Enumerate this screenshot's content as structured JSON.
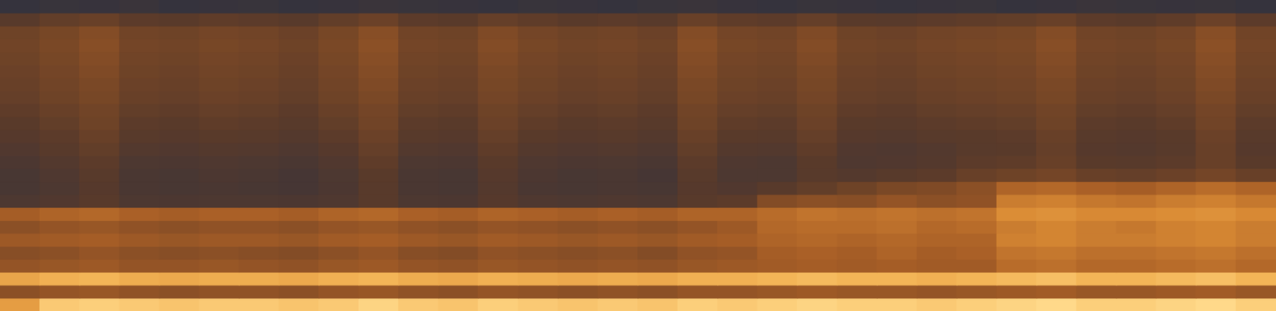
{
  "chart_data": {
    "type": "heatmap",
    "grid": false,
    "tick_labels": false,
    "cells": [
      [
        22,
        24,
        23,
        25,
        22,
        23,
        24,
        22,
        23,
        25,
        24,
        23,
        22,
        24,
        23,
        22,
        24,
        25,
        23,
        22,
        24,
        23,
        22,
        23,
        24,
        22,
        23,
        25,
        24,
        23,
        24,
        22
      ],
      [
        42,
        46,
        48,
        44,
        43,
        45,
        44,
        42,
        46,
        49,
        44,
        43,
        47,
        45,
        43,
        44,
        42,
        48,
        45,
        44,
        47,
        43,
        42,
        44,
        45,
        46,
        48,
        44,
        43,
        45,
        49,
        44
      ],
      [
        50,
        53,
        56,
        51,
        50,
        52,
        51,
        49,
        53,
        57,
        51,
        50,
        55,
        52,
        50,
        51,
        49,
        56,
        52,
        51,
        55,
        50,
        49,
        51,
        52,
        53,
        56,
        51,
        50,
        52,
        57,
        51
      ],
      [
        51,
        54,
        57,
        52,
        51,
        53,
        52,
        50,
        54,
        58,
        52,
        51,
        56,
        53,
        51,
        52,
        50,
        57,
        53,
        52,
        56,
        51,
        50,
        52,
        53,
        54,
        57,
        52,
        51,
        53,
        58,
        52
      ],
      [
        50,
        53,
        56,
        51,
        50,
        52,
        51,
        49,
        53,
        57,
        51,
        50,
        55,
        52,
        50,
        51,
        49,
        56,
        52,
        51,
        55,
        50,
        49,
        51,
        52,
        53,
        56,
        51,
        50,
        52,
        57,
        51
      ],
      [
        49,
        52,
        55,
        50,
        49,
        51,
        50,
        48,
        52,
        56,
        50,
        49,
        54,
        51,
        49,
        50,
        48,
        55,
        51,
        50,
        54,
        49,
        48,
        50,
        51,
        52,
        55,
        50,
        49,
        51,
        56,
        50
      ],
      [
        48,
        51,
        54,
        49,
        48,
        50,
        49,
        47,
        51,
        55,
        49,
        48,
        53,
        50,
        48,
        49,
        47,
        54,
        50,
        49,
        53,
        48,
        47,
        49,
        50,
        51,
        54,
        49,
        48,
        50,
        55,
        49
      ],
      [
        47,
        50,
        53,
        48,
        47,
        49,
        48,
        46,
        50,
        54,
        48,
        47,
        52,
        49,
        47,
        48,
        46,
        53,
        49,
        48,
        52,
        47,
        46,
        48,
        49,
        50,
        53,
        48,
        47,
        49,
        54,
        48
      ],
      [
        45,
        48,
        51,
        46,
        45,
        47,
        46,
        44,
        48,
        52,
        46,
        45,
        50,
        47,
        45,
        46,
        44,
        51,
        47,
        46,
        50,
        45,
        44,
        46,
        47,
        48,
        51,
        46,
        45,
        47,
        52,
        46
      ],
      [
        43,
        46,
        50,
        44,
        43,
        45,
        44,
        42,
        46,
        51,
        44,
        43,
        49,
        45,
        43,
        44,
        42,
        50,
        45,
        44,
        49,
        43,
        42,
        44,
        45,
        46,
        50,
        44,
        43,
        45,
        51,
        44
      ],
      [
        41,
        44,
        48,
        42,
        41,
        43,
        42,
        40,
        44,
        49,
        42,
        41,
        47,
        43,
        41,
        42,
        40,
        48,
        43,
        42,
        47,
        41,
        40,
        42,
        43,
        44,
        48,
        42,
        41,
        43,
        49,
        42
      ],
      [
        38,
        42,
        46,
        39,
        38,
        40,
        39,
        37,
        41,
        47,
        39,
        38,
        45,
        40,
        38,
        39,
        37,
        46,
        40,
        39,
        45,
        38,
        37,
        39,
        42,
        43,
        47,
        41,
        40,
        42,
        48,
        41
      ],
      [
        35,
        39,
        44,
        36,
        35,
        37,
        36,
        34,
        38,
        45,
        36,
        35,
        43,
        37,
        35,
        36,
        34,
        44,
        37,
        36,
        43,
        37,
        38,
        40,
        44,
        45,
        48,
        43,
        42,
        44,
        48,
        43
      ],
      [
        33,
        37,
        42,
        34,
        33,
        35,
        34,
        32,
        36,
        43,
        34,
        33,
        41,
        35,
        33,
        34,
        32,
        42,
        36,
        36,
        42,
        40,
        42,
        44,
        48,
        50,
        52,
        48,
        47,
        49,
        52,
        48
      ],
      [
        33,
        36,
        41,
        34,
        33,
        34,
        33,
        32,
        35,
        42,
        34,
        33,
        40,
        34,
        33,
        34,
        33,
        41,
        38,
        42,
        46,
        50,
        54,
        55,
        58,
        66,
        67,
        65,
        64,
        66,
        68,
        66
      ],
      [
        36,
        38,
        42,
        36,
        35,
        36,
        36,
        35,
        37,
        42,
        36,
        35,
        41,
        37,
        36,
        37,
        36,
        42,
        44,
        56,
        58,
        57,
        60,
        58,
        59,
        72,
        73,
        71,
        70,
        72,
        73,
        71
      ],
      [
        64,
        66,
        67,
        65,
        64,
        65,
        65,
        64,
        66,
        67,
        65,
        64,
        66,
        65,
        64,
        65,
        64,
        66,
        66,
        68,
        70,
        69,
        70,
        69,
        70,
        76,
        77,
        75,
        75,
        76,
        77,
        75
      ],
      [
        58,
        60,
        61,
        59,
        58,
        59,
        59,
        58,
        60,
        61,
        59,
        58,
        60,
        59,
        58,
        59,
        58,
        60,
        62,
        67,
        68,
        68,
        69,
        67,
        68,
        72,
        74,
        72,
        71,
        73,
        74,
        72
      ],
      [
        62,
        63,
        64,
        62,
        61,
        62,
        62,
        61,
        63,
        64,
        62,
        61,
        63,
        62,
        61,
        62,
        61,
        63,
        64,
        66,
        67,
        66,
        67,
        66,
        66,
        73,
        74,
        72,
        72,
        73,
        74,
        72
      ],
      [
        57,
        58,
        60,
        58,
        57,
        58,
        57,
        56,
        58,
        60,
        57,
        56,
        59,
        58,
        57,
        58,
        56,
        59,
        60,
        64,
        65,
        64,
        66,
        64,
        65,
        70,
        71,
        69,
        69,
        70,
        71,
        69
      ],
      [
        60,
        61,
        62,
        60,
        60,
        61,
        60,
        59,
        61,
        62,
        60,
        59,
        61,
        60,
        59,
        60,
        59,
        61,
        62,
        63,
        64,
        63,
        64,
        63,
        63,
        68,
        69,
        67,
        67,
        68,
        69,
        67
      ],
      [
        82,
        85,
        86,
        84,
        83,
        84,
        84,
        83,
        85,
        86,
        84,
        83,
        85,
        84,
        83,
        84,
        83,
        85,
        85,
        86,
        87,
        86,
        86,
        85,
        86,
        87,
        88,
        86,
        86,
        87,
        88,
        86
      ],
      [
        58,
        60,
        61,
        59,
        58,
        59,
        59,
        58,
        60,
        61,
        59,
        58,
        60,
        59,
        58,
        59,
        58,
        60,
        60,
        61,
        62,
        61,
        61,
        60,
        61,
        62,
        63,
        61,
        61,
        62,
        63,
        61
      ],
      [
        80,
        90,
        91,
        90,
        89,
        90,
        90,
        89,
        90,
        92,
        90,
        89,
        91,
        90,
        89,
        90,
        89,
        91,
        90,
        91,
        92,
        91,
        91,
        90,
        91,
        92,
        93,
        91,
        91,
        92,
        93,
        91
      ]
    ]
  }
}
